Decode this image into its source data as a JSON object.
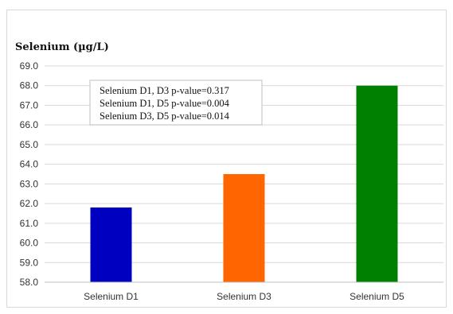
{
  "chart_data": {
    "type": "bar",
    "title": "Selenium (µg/L)",
    "xlabel": "",
    "ylabel": "",
    "categories": [
      "Selenium D1",
      "Selenium D3",
      "Selenium D5"
    ],
    "values": [
      61.8,
      63.5,
      68.0
    ],
    "colors": [
      "#0000c0",
      "#ff6600",
      "#008000"
    ],
    "ylim": [
      58.0,
      69.0
    ],
    "ytick_step": 1.0,
    "yticks": [
      "58.0",
      "59.0",
      "60.0",
      "61.0",
      "62.0",
      "63.0",
      "64.0",
      "65.0",
      "66.0",
      "67.0",
      "68.0",
      "69.0"
    ],
    "grid": true,
    "legend": "none",
    "annotations": [
      "Selenium D1, D3 p-value=0.317",
      "Selenium D1, D5 p-value=0.004",
      "Selenium D3, D5 p-value=0.014"
    ]
  }
}
